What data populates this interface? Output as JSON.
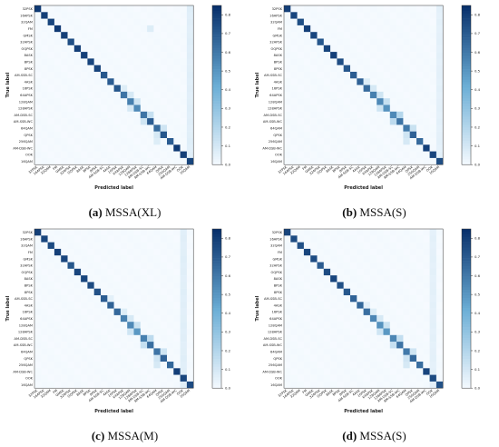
{
  "class_labels": [
    "32PSK",
    "16APSK",
    "32QAM",
    "FM",
    "GMSK",
    "32APSK",
    "OQPSK",
    "8ASK",
    "BPSK",
    "8PSK",
    "AM-SSB-SC",
    "4ASK",
    "16PSK",
    "64APSK",
    "128QAM",
    "128APSK",
    "AM-DSB-SC",
    "AM-SSB-WC",
    "64QAM",
    "QPSK",
    "256QAM",
    "AM-DSB-WC",
    "OOK",
    "16QAM"
  ],
  "axis": {
    "xlabel": "Predicted label",
    "ylabel": "True label"
  },
  "colorbar_ticks": [
    "0.0",
    "0.1",
    "0.2",
    "0.3",
    "0.4",
    "0.5",
    "0.6",
    "0.7",
    "0.8"
  ],
  "colors": {
    "low": "#f7fbff",
    "high": "#08306b"
  },
  "panels": [
    {
      "caption_letter": "(a)",
      "caption_text": "MSSA(XL)",
      "chart_data": {
        "type": "heatmap",
        "vmin": 0,
        "vmax": 0.85,
        "diagonal": [
          0.82,
          0.8,
          0.78,
          0.82,
          0.8,
          0.75,
          0.8,
          0.8,
          0.78,
          0.78,
          0.72,
          0.7,
          0.72,
          0.62,
          0.58,
          0.55,
          0.62,
          0.7,
          0.65,
          0.72,
          0.7,
          0.82,
          0.8,
          0.78
        ],
        "offdiag": [
          [
            3,
            17,
            0.08
          ],
          [
            16,
            17,
            0.15
          ],
          [
            17,
            16,
            0.12
          ],
          [
            18,
            19,
            0.12
          ],
          [
            19,
            18,
            0.1
          ],
          [
            20,
            18,
            0.08
          ],
          [
            13,
            14,
            0.1
          ],
          [
            14,
            15,
            0.12
          ],
          [
            15,
            14,
            0.1
          ],
          [
            12,
            13,
            0.08
          ]
        ],
        "stripe_col": 23,
        "stripe_val": 0.06
      }
    },
    {
      "caption_letter": "(b)",
      "caption_text": "MSSA(S)",
      "chart_data": {
        "type": "heatmap",
        "vmin": 0,
        "vmax": 0.85,
        "diagonal": [
          0.8,
          0.78,
          0.75,
          0.8,
          0.78,
          0.72,
          0.78,
          0.8,
          0.75,
          0.72,
          0.7,
          0.68,
          0.65,
          0.58,
          0.55,
          0.52,
          0.55,
          0.62,
          0.6,
          0.68,
          0.65,
          0.8,
          0.78,
          0.75
        ],
        "offdiag": [
          [
            16,
            17,
            0.2
          ],
          [
            17,
            16,
            0.18
          ],
          [
            18,
            19,
            0.14
          ],
          [
            19,
            18,
            0.12
          ],
          [
            20,
            18,
            0.1
          ],
          [
            13,
            14,
            0.12
          ],
          [
            14,
            15,
            0.15
          ],
          [
            15,
            14,
            0.12
          ],
          [
            12,
            13,
            0.1
          ],
          [
            11,
            12,
            0.08
          ]
        ],
        "stripe_col": 23,
        "stripe_val": 0.05
      }
    },
    {
      "caption_letter": "(c)",
      "caption_text": "MSSA(M)",
      "chart_data": {
        "type": "heatmap",
        "vmin": 0,
        "vmax": 0.85,
        "diagonal": [
          0.8,
          0.78,
          0.76,
          0.8,
          0.78,
          0.72,
          0.78,
          0.78,
          0.76,
          0.74,
          0.7,
          0.68,
          0.66,
          0.58,
          0.55,
          0.5,
          0.58,
          0.64,
          0.62,
          0.68,
          0.66,
          0.8,
          0.78,
          0.76
        ],
        "offdiag": [
          [
            16,
            17,
            0.18
          ],
          [
            17,
            16,
            0.15
          ],
          [
            18,
            19,
            0.12
          ],
          [
            19,
            18,
            0.12
          ],
          [
            20,
            18,
            0.1
          ],
          [
            13,
            14,
            0.1
          ],
          [
            14,
            15,
            0.14
          ],
          [
            15,
            14,
            0.12
          ],
          [
            12,
            13,
            0.08
          ],
          [
            10,
            11,
            0.06
          ]
        ],
        "stripe_col": 22,
        "stripe_val": 0.06
      }
    },
    {
      "caption_letter": "(d)",
      "caption_text": "MSSA(S)",
      "chart_data": {
        "type": "heatmap",
        "vmin": 0,
        "vmax": 0.85,
        "diagonal": [
          0.78,
          0.76,
          0.74,
          0.78,
          0.76,
          0.7,
          0.76,
          0.78,
          0.74,
          0.72,
          0.68,
          0.66,
          0.64,
          0.56,
          0.52,
          0.5,
          0.56,
          0.62,
          0.6,
          0.66,
          0.64,
          0.78,
          0.76,
          0.74
        ],
        "offdiag": [
          [
            16,
            17,
            0.16
          ],
          [
            17,
            16,
            0.15
          ],
          [
            18,
            19,
            0.12
          ],
          [
            19,
            18,
            0.12
          ],
          [
            20,
            18,
            0.1
          ],
          [
            13,
            14,
            0.1
          ],
          [
            14,
            15,
            0.14
          ],
          [
            15,
            14,
            0.12
          ],
          [
            12,
            13,
            0.08
          ],
          [
            11,
            12,
            0.06
          ]
        ],
        "stripe_col": 22,
        "stripe_val": 0.05
      }
    }
  ]
}
